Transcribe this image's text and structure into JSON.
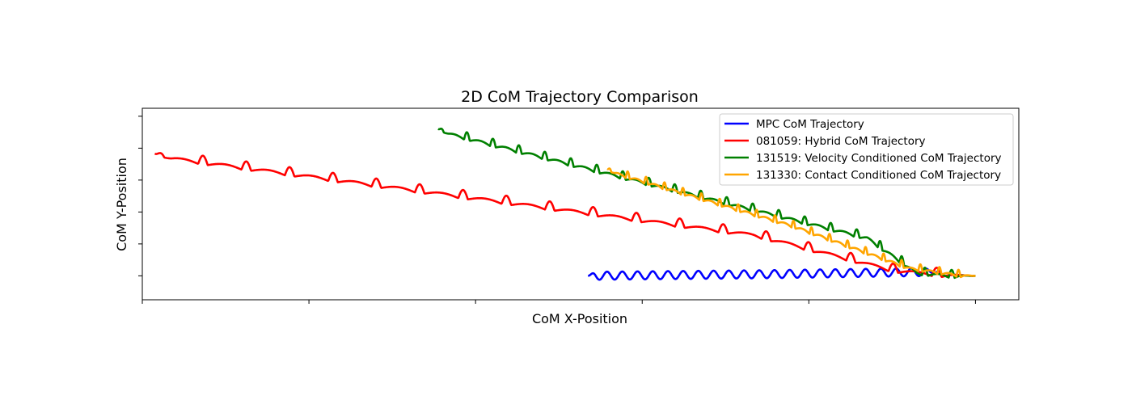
{
  "chart_data": {
    "type": "line",
    "title": "2D CoM Trajectory Comparison",
    "xlabel": "CoM X-Position",
    "ylabel": "CoM Y-Position",
    "xlim": [
      -10.0,
      0.52
    ],
    "ylim": [
      -0.3,
      2.1
    ],
    "grid": false,
    "legend_position": "top-right",
    "series": [
      {
        "name": "MPC CoM Trajectory",
        "color": "#0000ff",
        "start": [
          -4.65,
          0.0
        ],
        "end": [
          -0.45,
          0.05
        ],
        "waves": 23,
        "wave_amp": 0.05,
        "wave_type": "sine",
        "points": [
          [
            -4.65,
            0.0
          ],
          [
            -2.55,
            0.02
          ],
          [
            -0.45,
            0.05
          ]
        ]
      },
      {
        "name": "081059: Hybrid CoM Trajectory",
        "color": "#ff0000",
        "start": [
          -9.85,
          1.53
        ],
        "end": [
          0.0,
          0.0
        ],
        "waves": 19,
        "wave_amp": 0.11,
        "wave_type": "step",
        "points": [
          [
            -9.85,
            1.53
          ],
          [
            -7.45,
            1.2
          ],
          [
            -5.05,
            0.87
          ],
          [
            -2.65,
            0.54
          ],
          [
            -1.0,
            0.1
          ],
          [
            0.0,
            0.0
          ]
        ]
      },
      {
        "name": "131519: Velocity Conditioned CoM Trajectory",
        "color": "#008000",
        "start": [
          -6.45,
          1.84
        ],
        "end": [
          0.0,
          0.0
        ],
        "waves": 21,
        "wave_amp": 0.1,
        "wave_type": "step",
        "points": [
          [
            -6.45,
            1.84
          ],
          [
            -3.85,
            1.16
          ],
          [
            -1.3,
            0.5
          ],
          [
            -0.7,
            0.06
          ],
          [
            0.0,
            0.0
          ]
        ]
      },
      {
        "name": "131330: Contact Conditioned CoM Trajectory",
        "color": "#ffa500",
        "start": [
          -4.42,
          1.34
        ],
        "end": [
          0.0,
          0.0
        ],
        "waves": 20,
        "wave_amp": 0.09,
        "wave_type": "step",
        "points": [
          [
            -4.42,
            1.34
          ],
          [
            -2.2,
            0.65
          ],
          [
            -0.8,
            0.12
          ],
          [
            0.0,
            0.0
          ]
        ]
      }
    ]
  }
}
